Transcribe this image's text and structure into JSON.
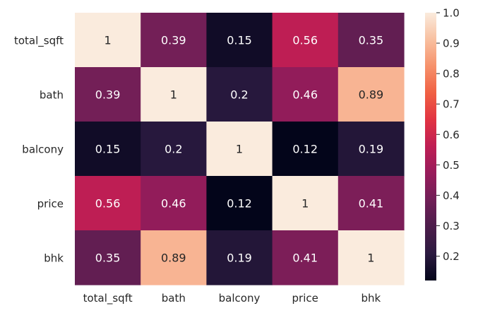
{
  "chart_data": {
    "type": "heatmap",
    "title": "",
    "xlabel": "",
    "ylabel": "",
    "x_categories": [
      "total_sqft",
      "bath",
      "balcony",
      "price",
      "bhk"
    ],
    "y_categories": [
      "total_sqft",
      "bath",
      "balcony",
      "price",
      "bhk"
    ],
    "values": [
      [
        1,
        0.39,
        0.15,
        0.56,
        0.35
      ],
      [
        0.39,
        1,
        0.2,
        0.46,
        0.89
      ],
      [
        0.15,
        0.2,
        1,
        0.12,
        0.19
      ],
      [
        0.56,
        0.46,
        0.12,
        1,
        0.41
      ],
      [
        0.35,
        0.89,
        0.19,
        0.41,
        1
      ]
    ],
    "annotations": [
      [
        "1",
        "0.39",
        "0.15",
        "0.56",
        "0.35"
      ],
      [
        "0.39",
        "1",
        "0.2",
        "0.46",
        "0.89"
      ],
      [
        "0.15",
        "0.2",
        "1",
        "0.12",
        "0.19"
      ],
      [
        "0.56",
        "0.46",
        "0.12",
        "1",
        "0.41"
      ],
      [
        "0.35",
        "0.89",
        "0.19",
        "0.41",
        "1"
      ]
    ],
    "colorbar": {
      "vmin": 0.12,
      "vmax": 1.0,
      "ticks": [
        0.2,
        0.3,
        0.4,
        0.5,
        0.6,
        0.7,
        0.8,
        0.9,
        1.0
      ],
      "tick_labels": [
        "0.2",
        "0.3",
        "0.4",
        "0.5",
        "0.6",
        "0.7",
        "0.8",
        "0.9",
        "1.0"
      ],
      "colormap": "rocket",
      "stops": [
        "#03051a",
        "#2b1a40",
        "#4c1d4b",
        "#701f57",
        "#971c5b",
        "#be1e54",
        "#e13342",
        "#f06043",
        "#f6916b",
        "#f8c0a0",
        "#faebdd"
      ]
    },
    "grid": false,
    "legend": "colorbar-right"
  }
}
